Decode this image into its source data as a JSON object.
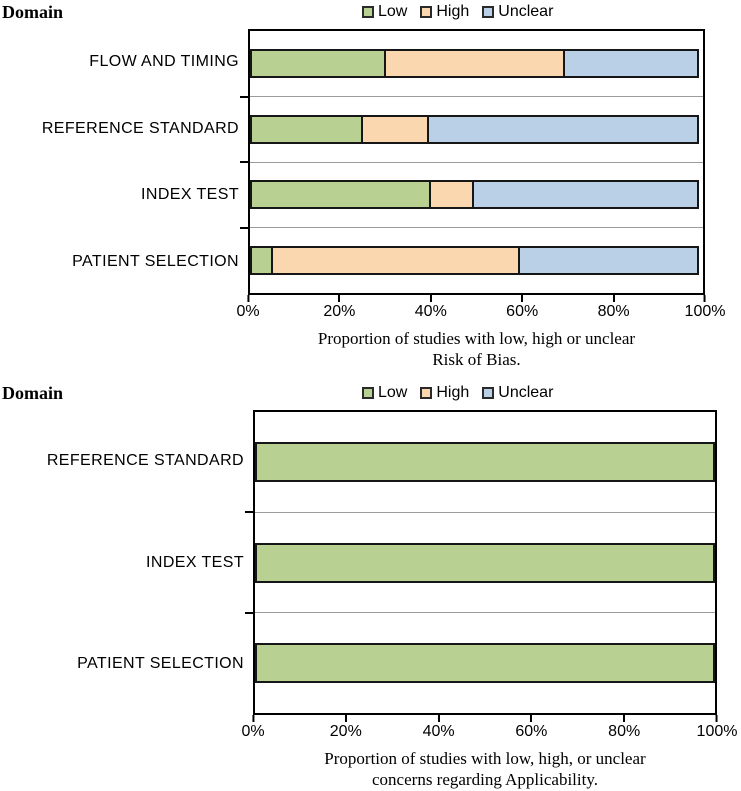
{
  "colors": {
    "low": "#b8d193",
    "high": "#fbd7af",
    "unclear": "#bad0e6",
    "bar_border": "#161616",
    "plot_border": "#000000",
    "gridline": "#9c9c9c"
  },
  "chart_data": [
    {
      "type": "bar",
      "orientation": "horizontal",
      "stacked": true,
      "domain_label": "Domain",
      "categories": [
        "FLOW AND TIMING",
        "REFERENCE STANDARD",
        "INDEX TEST",
        "PATIENT SELECTION"
      ],
      "series": [
        {
          "name": "Low",
          "color": "#b8d193",
          "values": [
            30,
            25,
            40,
            5
          ]
        },
        {
          "name": "High",
          "color": "#fbd7af",
          "values": [
            40,
            15,
            10,
            55
          ]
        },
        {
          "name": "Unclear",
          "color": "#bad0e6",
          "values": [
            30,
            60,
            50,
            40
          ]
        }
      ],
      "xlim": [
        0,
        100
      ],
      "x_ticks": [
        "0%",
        "20%",
        "40%",
        "60%",
        "80%",
        "100%"
      ],
      "legend_position": "top",
      "grid": "category-separators",
      "caption_lines": [
        "Proportion of studies with low, high or unclear",
        "Risk of Bias."
      ],
      "xlabel": "Proportion of studies with low, high or unclear Risk of Bias."
    },
    {
      "type": "bar",
      "orientation": "horizontal",
      "stacked": true,
      "domain_label": "Domain",
      "categories": [
        "REFERENCE STANDARD",
        "INDEX TEST",
        "PATIENT SELECTION"
      ],
      "series": [
        {
          "name": "Low",
          "color": "#b8d193",
          "values": [
            100,
            100,
            100
          ]
        },
        {
          "name": "High",
          "color": "#fbd7af",
          "values": [
            0,
            0,
            0
          ]
        },
        {
          "name": "Unclear",
          "color": "#bad0e6",
          "values": [
            0,
            0,
            0
          ]
        }
      ],
      "xlim": [
        0,
        100
      ],
      "x_ticks": [
        "0%",
        "20%",
        "40%",
        "60%",
        "80%",
        "100%"
      ],
      "legend_position": "top",
      "grid": "category-separators",
      "caption_lines": [
        "Proportion of studies with low, high, or unclear",
        "concerns regarding Applicability."
      ],
      "xlabel": "Proportion of studies with low, high, or unclear concerns regarding Applicability."
    }
  ]
}
